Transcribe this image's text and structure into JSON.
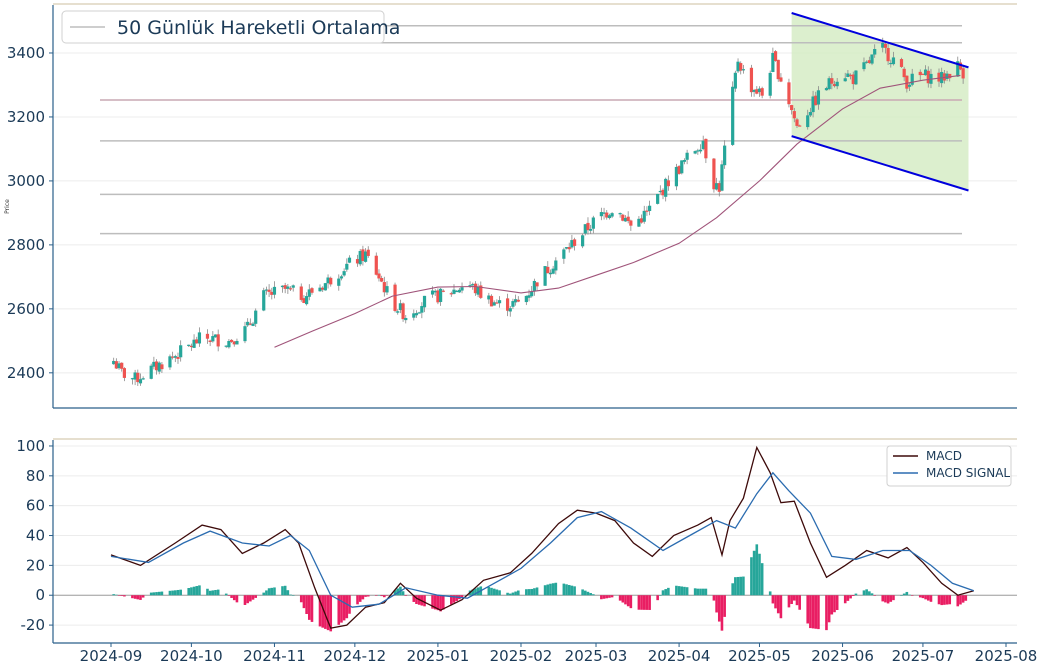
{
  "chart_data": [
    {
      "type": "candlestick",
      "ylabel": "Price",
      "ylim": [
        2290,
        3550
      ],
      "yticks": [
        2400,
        2600,
        2800,
        3000,
        3200,
        3400
      ],
      "legend": {
        "label": "50 Günlük Hareketli Ortalama",
        "placement": "top-left"
      },
      "colors": {
        "up": "#26a69a",
        "down": "#ef5350",
        "ma": "#a0547a",
        "channel": "#0000dd",
        "channel_fill": "#d6ecc6",
        "hline": "#bdbdbd",
        "hline_dark": "#c9a9b4"
      },
      "horizontal_levels": [
        2835,
        2958,
        3125,
        3253,
        3432,
        3485
      ],
      "channel": {
        "upper": [
          [
            "2025-05-13",
            3525
          ],
          [
            "2025-07-18",
            3355
          ]
        ],
        "lower": [
          [
            "2025-05-13",
            3140
          ],
          [
            "2025-07-18",
            2970
          ]
        ]
      },
      "moving_average": [
        [
          "2024-11-01",
          2480
        ],
        [
          "2024-11-15",
          2530
        ],
        [
          "2024-12-01",
          2585
        ],
        [
          "2024-12-15",
          2640
        ],
        [
          "2025-01-01",
          2668
        ],
        [
          "2025-01-15",
          2670
        ],
        [
          "2025-02-01",
          2650
        ],
        [
          "2025-02-15",
          2665
        ],
        [
          "2025-03-01",
          2705
        ],
        [
          "2025-03-15",
          2745
        ],
        [
          "2025-04-01",
          2805
        ],
        [
          "2025-04-15",
          2885
        ],
        [
          "2025-05-01",
          3000
        ],
        [
          "2025-05-15",
          3115
        ],
        [
          "2025-06-01",
          3225
        ],
        [
          "2025-06-15",
          3290
        ],
        [
          "2025-07-01",
          3315
        ],
        [
          "2025-07-15",
          3330
        ]
      ],
      "price_path": [
        [
          "2024-09-01",
          2450
        ],
        [
          "2024-09-05",
          2400
        ],
        [
          "2024-09-10",
          2380
        ],
        [
          "2024-09-20",
          2430
        ],
        [
          "2024-09-28",
          2470
        ],
        [
          "2024-10-05",
          2510
        ],
        [
          "2024-10-15",
          2500
        ],
        [
          "2024-10-22",
          2540
        ],
        [
          "2024-10-28",
          2640
        ],
        [
          "2024-11-05",
          2660
        ],
        [
          "2024-11-12",
          2640
        ],
        [
          "2024-11-20",
          2680
        ],
        [
          "2024-11-27",
          2730
        ],
        [
          "2024-12-05",
          2770
        ],
        [
          "2024-12-10",
          2700
        ],
        [
          "2024-12-15",
          2620
        ],
        [
          "2024-12-20",
          2580
        ],
        [
          "2024-12-28",
          2630
        ],
        [
          "2025-01-05",
          2650
        ],
        [
          "2025-01-12",
          2680
        ],
        [
          "2025-01-18",
          2640
        ],
        [
          "2025-01-25",
          2610
        ],
        [
          "2025-02-01",
          2620
        ],
        [
          "2025-02-08",
          2700
        ],
        [
          "2025-02-15",
          2760
        ],
        [
          "2025-02-22",
          2820
        ],
        [
          "2025-03-01",
          2880
        ],
        [
          "2025-03-08",
          2920
        ],
        [
          "2025-03-14",
          2860
        ],
        [
          "2025-03-20",
          2900
        ],
        [
          "2025-03-28",
          3000
        ],
        [
          "2025-04-05",
          3080
        ],
        [
          "2025-04-10",
          3130
        ],
        [
          "2025-04-13",
          3000
        ],
        [
          "2025-04-16",
          2980
        ],
        [
          "2025-04-20",
          3220
        ],
        [
          "2025-04-23",
          3380
        ],
        [
          "2025-04-27",
          3300
        ],
        [
          "2025-05-02",
          3270
        ],
        [
          "2025-05-06",
          3380
        ],
        [
          "2025-05-10",
          3300
        ],
        [
          "2025-05-15",
          3170
        ],
        [
          "2025-05-20",
          3230
        ],
        [
          "2025-05-25",
          3290
        ],
        [
          "2025-06-01",
          3340
        ],
        [
          "2025-06-05",
          3320
        ],
        [
          "2025-06-10",
          3360
        ],
        [
          "2025-06-15",
          3420
        ],
        [
          "2025-06-20",
          3380
        ],
        [
          "2025-06-25",
          3310
        ],
        [
          "2025-07-01",
          3330
        ],
        [
          "2025-07-08",
          3320
        ],
        [
          "2025-07-14",
          3360
        ],
        [
          "2025-07-16",
          3340
        ]
      ]
    },
    {
      "type": "line",
      "ylim": [
        -32,
        104
      ],
      "yticks": [
        -20,
        0,
        20,
        40,
        60,
        80,
        100
      ],
      "xticks": [
        "2024-09",
        "2024-10",
        "2024-11",
        "2024-12",
        "2025-01",
        "2025-02",
        "2025-03",
        "2025-04",
        "2025-05",
        "2025-06",
        "2025-07",
        "2025-08"
      ],
      "legend_placement": "top-right",
      "series": [
        {
          "name": "MACD",
          "color": "#3d0a0a",
          "values": [
            [
              "2024-09-01",
              27
            ],
            [
              "2024-09-12",
              20
            ],
            [
              "2024-09-25",
              35
            ],
            [
              "2024-10-05",
              47
            ],
            [
              "2024-10-12",
              44
            ],
            [
              "2024-10-20",
              28
            ],
            [
              "2024-10-28",
              35
            ],
            [
              "2024-11-05",
              44
            ],
            [
              "2024-11-10",
              35
            ],
            [
              "2024-11-16",
              5
            ],
            [
              "2024-11-22",
              -22
            ],
            [
              "2024-11-28",
              -20
            ],
            [
              "2024-12-05",
              -8
            ],
            [
              "2024-12-12",
              -5
            ],
            [
              "2024-12-18",
              8
            ],
            [
              "2024-12-24",
              -2
            ],
            [
              "2025-01-02",
              -10
            ],
            [
              "2025-01-10",
              -3
            ],
            [
              "2025-01-18",
              10
            ],
            [
              "2025-01-28",
              15
            ],
            [
              "2025-02-05",
              28
            ],
            [
              "2025-02-15",
              48
            ],
            [
              "2025-02-22",
              57
            ],
            [
              "2025-03-01",
              55
            ],
            [
              "2025-03-08",
              50
            ],
            [
              "2025-03-15",
              35
            ],
            [
              "2025-03-22",
              26
            ],
            [
              "2025-03-30",
              40
            ],
            [
              "2025-04-08",
              47
            ],
            [
              "2025-04-13",
              52
            ],
            [
              "2025-04-17",
              27
            ],
            [
              "2025-04-20",
              50
            ],
            [
              "2025-04-25",
              65
            ],
            [
              "2025-04-30",
              99
            ],
            [
              "2025-05-05",
              82
            ],
            [
              "2025-05-09",
              62
            ],
            [
              "2025-05-14",
              63
            ],
            [
              "2025-05-20",
              35
            ],
            [
              "2025-05-26",
              12
            ],
            [
              "2025-06-02",
              20
            ],
            [
              "2025-06-10",
              30
            ],
            [
              "2025-06-18",
              25
            ],
            [
              "2025-06-25",
              32
            ],
            [
              "2025-07-01",
              22
            ],
            [
              "2025-07-08",
              8
            ],
            [
              "2025-07-14",
              0
            ],
            [
              "2025-07-20",
              3
            ]
          ]
        },
        {
          "name": "MACD SIGNAL",
          "color": "#2b6cb0",
          "values": [
            [
              "2024-09-01",
              26
            ],
            [
              "2024-09-15",
              22
            ],
            [
              "2024-09-28",
              35
            ],
            [
              "2024-10-08",
              43
            ],
            [
              "2024-10-20",
              35
            ],
            [
              "2024-10-30",
              33
            ],
            [
              "2024-11-07",
              40
            ],
            [
              "2024-11-14",
              30
            ],
            [
              "2024-11-22",
              0
            ],
            [
              "2024-11-30",
              -8
            ],
            [
              "2024-12-10",
              -6
            ],
            [
              "2024-12-20",
              5
            ],
            [
              "2025-01-01",
              0
            ],
            [
              "2025-01-12",
              -2
            ],
            [
              "2025-01-22",
              8
            ],
            [
              "2025-02-01",
              18
            ],
            [
              "2025-02-12",
              35
            ],
            [
              "2025-02-22",
              52
            ],
            [
              "2025-03-03",
              56
            ],
            [
              "2025-03-14",
              45
            ],
            [
              "2025-03-26",
              30
            ],
            [
              "2025-04-05",
              40
            ],
            [
              "2025-04-15",
              50
            ],
            [
              "2025-04-22",
              45
            ],
            [
              "2025-04-30",
              68
            ],
            [
              "2025-05-06",
              82
            ],
            [
              "2025-05-12",
              70
            ],
            [
              "2025-05-20",
              55
            ],
            [
              "2025-05-28",
              26
            ],
            [
              "2025-06-06",
              24
            ],
            [
              "2025-06-16",
              30
            ],
            [
              "2025-06-26",
              30
            ],
            [
              "2025-07-04",
              20
            ],
            [
              "2025-07-12",
              8
            ],
            [
              "2025-07-20",
              3
            ]
          ]
        }
      ],
      "histogram_colors": {
        "positive": "#26a69a",
        "negative": "#e91e63"
      }
    }
  ]
}
